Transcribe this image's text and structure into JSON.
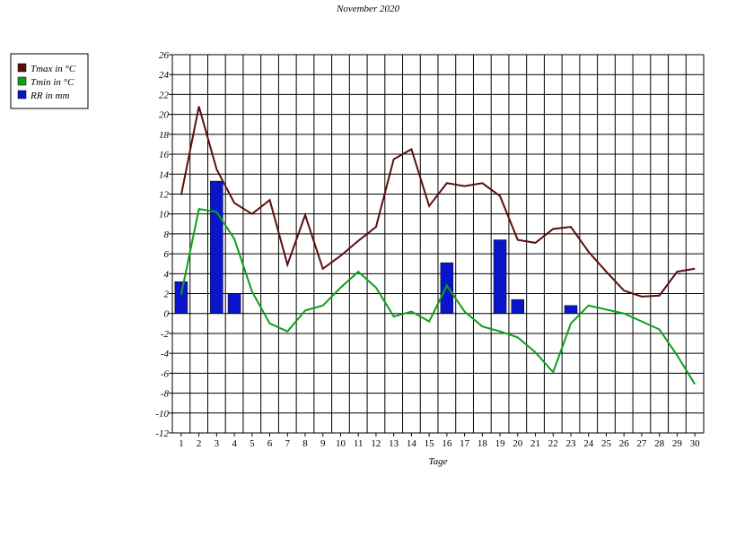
{
  "chart_data": {
    "type": "line",
    "title": "November 2020",
    "x_label": "Tage",
    "categories": [
      "1",
      "2",
      "3",
      "4",
      "5",
      "6",
      "7",
      "8",
      "9",
      "10",
      "11",
      "12",
      "13",
      "14",
      "15",
      "16",
      "17",
      "18",
      "19",
      "20",
      "21",
      "22",
      "23",
      "24",
      "25",
      "26",
      "27",
      "28",
      "29",
      "30"
    ],
    "series": [
      {
        "name": "Tmax in °C",
        "color": "#5a0f0f",
        "type": "line",
        "values": [
          11.9,
          20.8,
          14.5,
          11.1,
          10.0,
          11.4,
          4.9,
          9.9,
          4.5,
          5.8,
          7.3,
          8.7,
          15.5,
          16.5,
          10.8,
          13.1,
          12.8,
          13.1,
          11.8,
          7.4,
          7.1,
          8.5,
          8.7,
          6.2,
          4.2,
          2.3,
          1.7,
          1.8,
          4.2,
          4.5
        ]
      },
      {
        "name": "Tmin in °C",
        "color": "#0ca01c",
        "type": "line",
        "values": [
          1.9,
          10.5,
          10.2,
          7.5,
          2.2,
          -1.0,
          -1.8,
          0.3,
          0.8,
          2.6,
          4.2,
          2.6,
          -0.3,
          0.2,
          -0.8,
          2.8,
          0.2,
          -1.3,
          -1.8,
          -2.4,
          -3.9,
          -5.9,
          -1.0,
          0.8,
          0.4,
          0.0,
          -0.8,
          -1.6,
          -4.2,
          -7.1
        ]
      },
      {
        "name": "RR in mm",
        "color": "#0a14c8",
        "type": "bar",
        "values": [
          3.2,
          0,
          13.3,
          2.0,
          0,
          0,
          0,
          0,
          0,
          0,
          0,
          0,
          0,
          0,
          0,
          5.1,
          0,
          0,
          7.4,
          1.4,
          0,
          0,
          0.8,
          0,
          0,
          0,
          0,
          0,
          0,
          0
        ]
      }
    ],
    "ylim": [
      -12,
      26
    ],
    "yticks": [
      -12,
      -10,
      -8,
      -6,
      -4,
      -2,
      0,
      2,
      4,
      6,
      8,
      10,
      12,
      14,
      16,
      18,
      20,
      22,
      24,
      26
    ],
    "grid": true,
    "legend": "left"
  }
}
